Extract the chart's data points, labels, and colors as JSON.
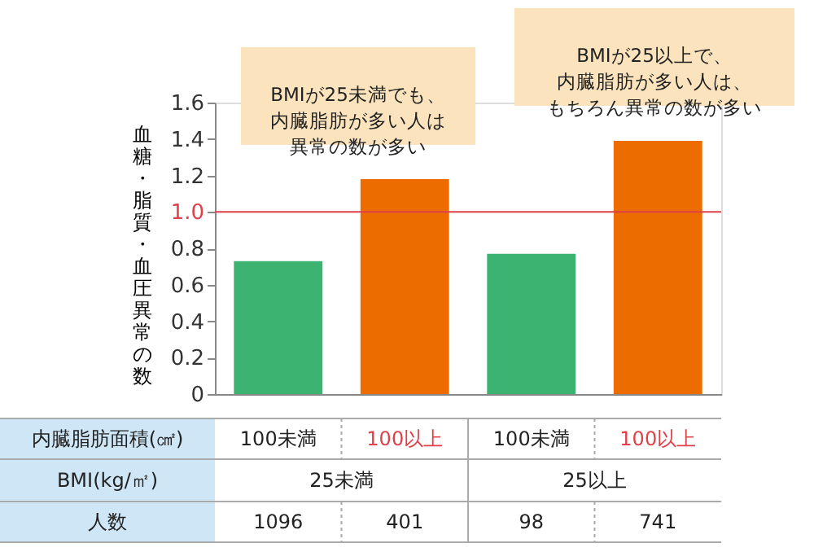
{
  "chart_data": {
    "type": "bar",
    "ylabel": "血糖・脂質・血圧異常の数",
    "categories": [
      "100未満",
      "100以上",
      "100未満",
      "100以上"
    ],
    "values": [
      0.73,
      1.18,
      0.77,
      1.39
    ],
    "colors": [
      "#3db371",
      "#ec6c00",
      "#3db371",
      "#ec6c00"
    ],
    "ylim": [
      0,
      1.6
    ],
    "yticks": [
      0,
      0.2,
      0.4,
      0.6,
      0.8,
      {
        "value": 1,
        "label": "1.0"
      },
      1.2,
      1.4,
      1.6
    ],
    "ref_lines": [
      {
        "axis": "y",
        "value": 1,
        "color": "#e0404a"
      }
    ],
    "grid": false,
    "annotations": [
      "BMIが25未満でも、内臓脂肪が多い人は異常の数が多い",
      "BMIが25以上で、内臓脂肪が多い人は、もちろん異常の数が多い",
      "内臓脂肪面積(㎠)",
      "BMI(kg/㎡)",
      "25未満",
      "25以上",
      "人数",
      "1096",
      "401",
      "98",
      "741"
    ]
  }
}
